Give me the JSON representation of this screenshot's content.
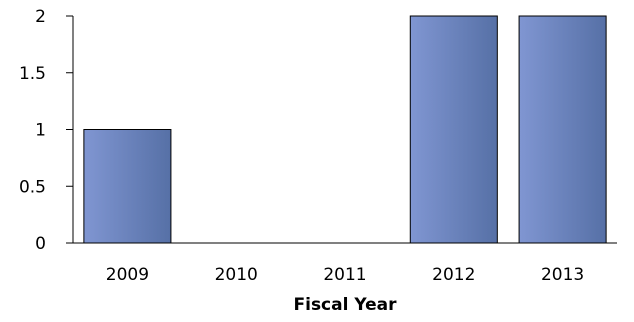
{
  "chart_data": {
    "type": "bar",
    "title": "",
    "xlabel": "Fiscal Year",
    "ylabel": "",
    "categories": [
      "2009",
      "2010",
      "2011",
      "2012",
      "2013"
    ],
    "values": [
      1,
      0,
      0,
      2,
      2
    ],
    "ylim": [
      0,
      2
    ],
    "yticks": [
      0,
      0.5,
      1,
      1.5,
      2
    ],
    "ytick_labels": [
      "0",
      "0.5",
      "1",
      "1.5",
      "2"
    ],
    "grid": false,
    "legend": "none",
    "colors": {
      "bar_light": "#8096d2",
      "bar_dark": "#5670a6",
      "axis": "#000000"
    }
  }
}
